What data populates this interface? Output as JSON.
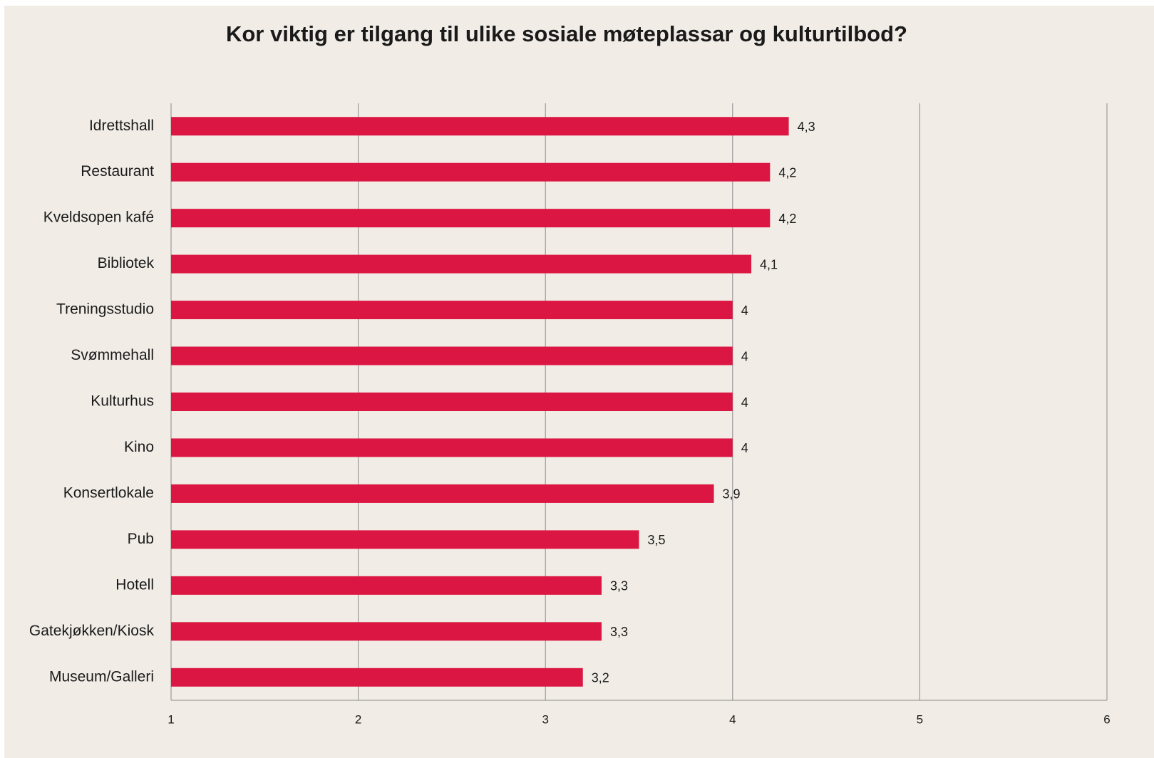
{
  "chart_data": {
    "type": "bar",
    "orientation": "horizontal",
    "title": "Kor viktig er tilgang til ulike sosiale møteplassar og kulturtilbod?",
    "categories": [
      "Idrettshall",
      "Restaurant",
      "Kveldsopen kafé",
      "Bibliotek",
      "Treningsstudio",
      "Svømmehall",
      "Kulturhus",
      "Kino",
      "Konsertlokale",
      "Pub",
      "Hotell",
      "Gatekjøkken/Kiosk",
      "Museum/Galleri"
    ],
    "values": [
      4.3,
      4.2,
      4.2,
      4.1,
      4,
      4,
      4,
      4,
      3.9,
      3.5,
      3.3,
      3.3,
      3.2
    ],
    "value_labels": [
      "4,3",
      "4,2",
      "4,2",
      "4,1",
      "4",
      "4",
      "4",
      "4",
      "3,9",
      "3,5",
      "3,3",
      "3,3",
      "3,2"
    ],
    "color": "#dc1642",
    "xlim": [
      1,
      6
    ],
    "xticks": [
      1,
      2,
      3,
      4,
      5,
      6
    ],
    "grid": true
  }
}
